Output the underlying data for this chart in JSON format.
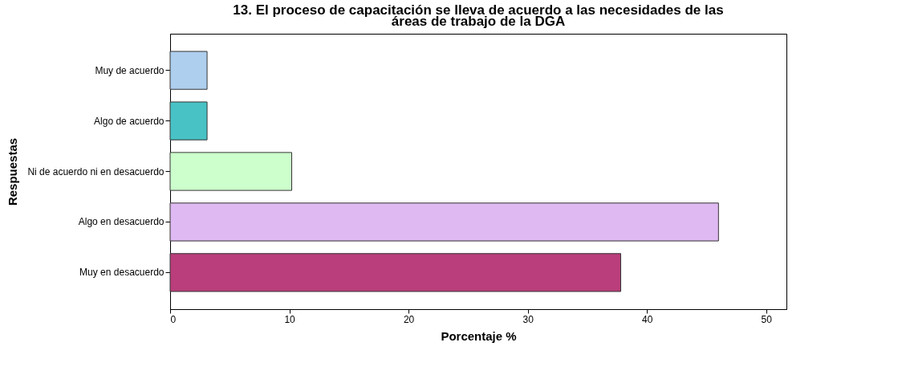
{
  "chart_data": {
    "type": "bar",
    "orientation": "horizontal",
    "title": "13. El proceso de capacitación se lleva de acuerdo a las necesidades de las áreas de trabajo de la DGA",
    "xlabel": "Porcentaje %",
    "ylabel": "Respuestas",
    "categories": [
      "Muy de acuerdo",
      "Algo de acuerdo",
      "Ni de acuerdo ni en desacuerdo",
      "Algo en desacuerdo",
      "Muy en desacuerdo"
    ],
    "values": [
      3.1,
      3.1,
      10.2,
      46.0,
      37.8
    ],
    "colors": [
      "#aecfee",
      "#48c2c5",
      "#ccffcc",
      "#dfb9f1",
      "#b93e7b"
    ],
    "xlim": [
      0,
      51.7
    ],
    "xticks": [
      0,
      10,
      20,
      30,
      40,
      50
    ],
    "grid": false
  }
}
